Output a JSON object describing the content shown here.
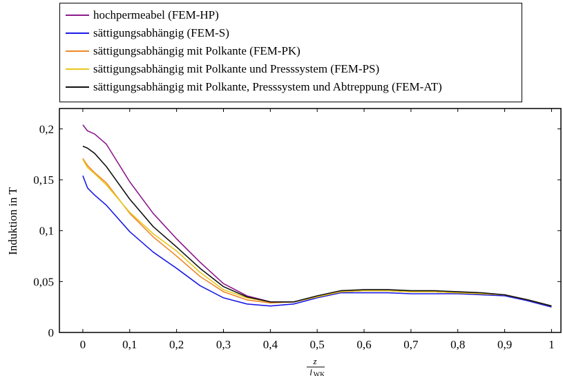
{
  "chart_data": {
    "type": "line",
    "title": "",
    "xlabel": {
      "numerator": "z",
      "denominator": "l",
      "subscript": "WK"
    },
    "ylabel": "Induktion in T",
    "xlim": [
      -0.05,
      1.02
    ],
    "ylim": [
      0,
      0.22
    ],
    "grid": false,
    "legend_position": "top",
    "x_ticks": [
      0,
      0.1,
      0.2,
      0.3,
      0.4,
      0.5,
      0.6,
      0.7,
      0.8,
      0.9,
      1
    ],
    "x_tick_labels": [
      "0",
      "0,1",
      "0,2",
      "0,3",
      "0,4",
      "0,5",
      "0,6",
      "0,7",
      "0,8",
      "0,9",
      "1"
    ],
    "y_ticks": [
      0,
      0.05,
      0.1,
      0.15,
      0.2
    ],
    "y_tick_labels": [
      "0",
      "0,05",
      "0,1",
      "0,15",
      "0,2"
    ],
    "x": [
      0,
      0.01,
      0.025,
      0.05,
      0.1,
      0.15,
      0.2,
      0.25,
      0.3,
      0.35,
      0.4,
      0.45,
      0.5,
      0.55,
      0.6,
      0.65,
      0.7,
      0.75,
      0.8,
      0.85,
      0.9,
      0.95,
      1.0
    ],
    "series": [
      {
        "name": "hochpermeabel (FEM-HP)",
        "color": "#8b1a8b",
        "values": [
          0.204,
          0.198,
          0.195,
          0.185,
          0.148,
          0.117,
          0.092,
          0.069,
          0.048,
          0.036,
          0.03,
          0.03,
          0.035,
          0.04,
          0.041,
          0.041,
          0.04,
          0.04,
          0.039,
          0.038,
          0.037,
          0.032,
          0.026
        ]
      },
      {
        "name": "sättigungsabhängig (FEM-S)",
        "color": "#1a1ae6",
        "values": [
          0.154,
          0.142,
          0.135,
          0.125,
          0.099,
          0.079,
          0.063,
          0.046,
          0.034,
          0.028,
          0.026,
          0.028,
          0.034,
          0.039,
          0.039,
          0.039,
          0.038,
          0.038,
          0.038,
          0.037,
          0.036,
          0.031,
          0.025
        ]
      },
      {
        "name": "sättigungsabhängig mit Polkante (FEM-PK)",
        "color": "#f0862a",
        "values": [
          0.171,
          0.164,
          0.157,
          0.147,
          0.117,
          0.094,
          0.075,
          0.055,
          0.04,
          0.032,
          0.029,
          0.03,
          0.035,
          0.04,
          0.041,
          0.041,
          0.04,
          0.04,
          0.039,
          0.038,
          0.037,
          0.032,
          0.026
        ]
      },
      {
        "name": "sättigungsabhängig mit Polkante und Presssystem (FEM-PS)",
        "color": "#e6c81a",
        "values": [
          0.17,
          0.162,
          0.156,
          0.145,
          0.118,
          0.097,
          0.08,
          0.059,
          0.042,
          0.034,
          0.03,
          0.03,
          0.035,
          0.04,
          0.041,
          0.041,
          0.04,
          0.04,
          0.039,
          0.038,
          0.037,
          0.032,
          0.026
        ]
      },
      {
        "name": "sättigungsabhängig mit Polkante, Presssystem und Abtreppung (FEM-AT)",
        "color": "#111111",
        "values": [
          0.183,
          0.181,
          0.176,
          0.163,
          0.131,
          0.104,
          0.084,
          0.063,
          0.045,
          0.035,
          0.03,
          0.03,
          0.036,
          0.041,
          0.042,
          0.042,
          0.041,
          0.041,
          0.04,
          0.039,
          0.037,
          0.032,
          0.026
        ]
      }
    ]
  }
}
